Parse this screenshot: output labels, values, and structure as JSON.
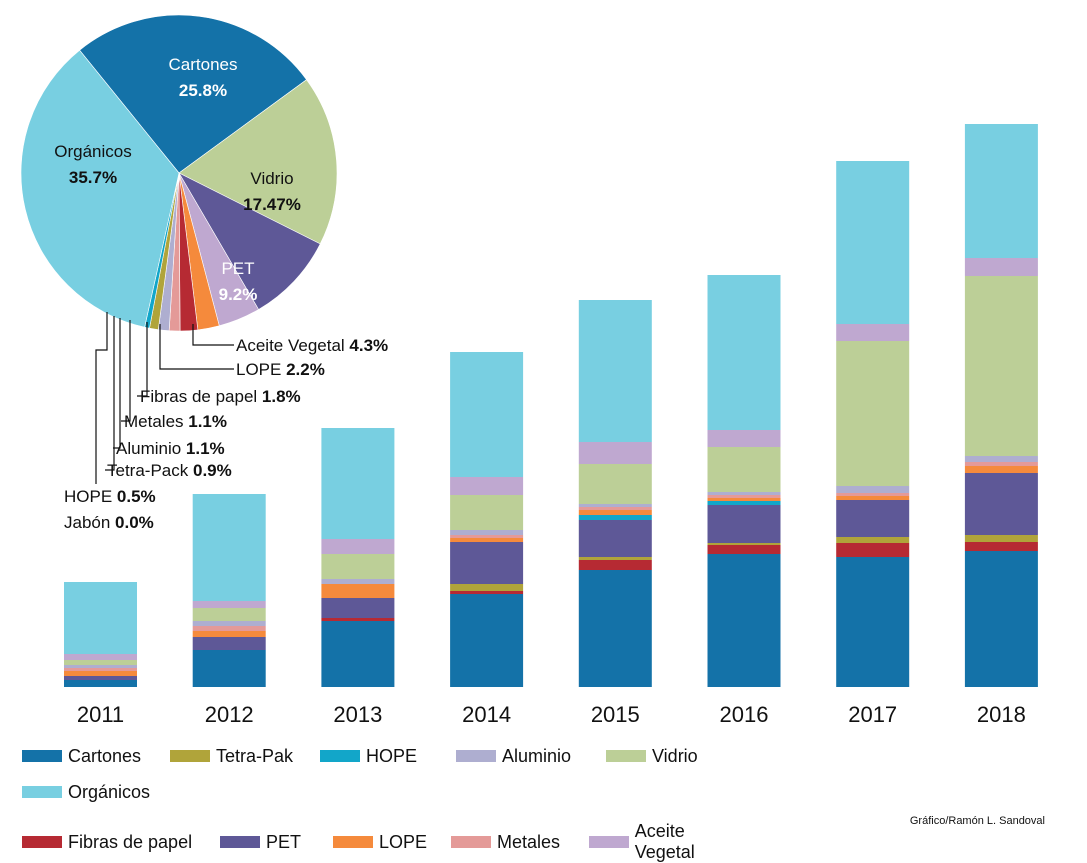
{
  "colors": {
    "Cartones": "#1472a8",
    "Tetra-Pak": "#b0a43a",
    "HOPE": "#12a6c9",
    "Aluminio": "#aeaed0",
    "Vidrio": "#bccf97",
    "Orgánicos": "#78cfe1",
    "Fibras de papel": "#b62a33",
    "PET": "#5e5897",
    "LOPE": "#f58a3c",
    "Metales": "#e49a98",
    "Aceite Vegetal": "#bfa8d0"
  },
  "chart_data": [
    {
      "type": "pie",
      "slices": [
        {
          "name": "Cartones",
          "value": 25.8,
          "label": "25.8%"
        },
        {
          "name": "Vidrio",
          "value": 17.47,
          "label": "17.47%"
        },
        {
          "name": "PET",
          "value": 9.2,
          "label": "9.2%"
        },
        {
          "name": "Aceite Vegetal",
          "value": 4.3,
          "label": "4.3%"
        },
        {
          "name": "LOPE",
          "value": 2.2,
          "label": "2.2%"
        },
        {
          "name": "Fibras de papel",
          "value": 1.8,
          "label": "1.8%"
        },
        {
          "name": "Metales",
          "value": 1.1,
          "label": "1.1%"
        },
        {
          "name": "Aluminio",
          "value": 1.1,
          "label": "1.1%"
        },
        {
          "name": "Tetra-Pack",
          "value": 0.9,
          "label": "0.9%"
        },
        {
          "name": "HOPE",
          "value": 0.5,
          "label": "0.5%"
        },
        {
          "name": "Jabón",
          "value": 0.0,
          "label": "0.0%"
        },
        {
          "name": "Orgánicos",
          "value": 35.7,
          "label": "35.7%"
        }
      ]
    },
    {
      "type": "bar",
      "stacked": true,
      "categories": [
        "2011",
        "2012",
        "2013",
        "2014",
        "2015",
        "2016",
        "2017",
        "2018"
      ],
      "series": [
        {
          "name": "Cartones",
          "values": [
            7,
            37,
            66,
            93,
            117,
            133,
            130,
            136
          ]
        },
        {
          "name": "Fibras de papel",
          "values": [
            0,
            0,
            3,
            3,
            10,
            9,
            14,
            9
          ]
        },
        {
          "name": "Tetra-Pak",
          "values": [
            0,
            0,
            0,
            7,
            3,
            2,
            6,
            7
          ]
        },
        {
          "name": "PET",
          "values": [
            4,
            13,
            20,
            42,
            37,
            38,
            37,
            62
          ]
        },
        {
          "name": "HOPE",
          "values": [
            0,
            0,
            0,
            0,
            5,
            4,
            0,
            0
          ]
        },
        {
          "name": "LOPE",
          "values": [
            5,
            6,
            14,
            4,
            5,
            3,
            4,
            7
          ]
        },
        {
          "name": "Metales",
          "values": [
            3,
            5,
            0,
            3,
            3,
            3,
            3,
            4
          ]
        },
        {
          "name": "Aluminio",
          "values": [
            3,
            5,
            5,
            5,
            3,
            3,
            7,
            6
          ]
        },
        {
          "name": "Vidrio",
          "values": [
            5,
            13,
            25,
            35,
            40,
            45,
            145,
            180
          ]
        },
        {
          "name": "Aceite Vegetal",
          "values": [
            6,
            7,
            15,
            18,
            22,
            17,
            17,
            18
          ]
        },
        {
          "name": "Orgánicos",
          "values": [
            72,
            107,
            111,
            125,
            142,
            155,
            163,
            134
          ]
        }
      ]
    }
  ],
  "legend": [
    "Cartones",
    "Tetra-Pak",
    "HOPE",
    "Aluminio",
    "Vidrio",
    "Orgánicos",
    "Fibras de papel",
    "PET",
    "LOPE",
    "Metales",
    "Aceite Vegetal"
  ],
  "credit": "Gráfico/Ramón L. Sandoval"
}
